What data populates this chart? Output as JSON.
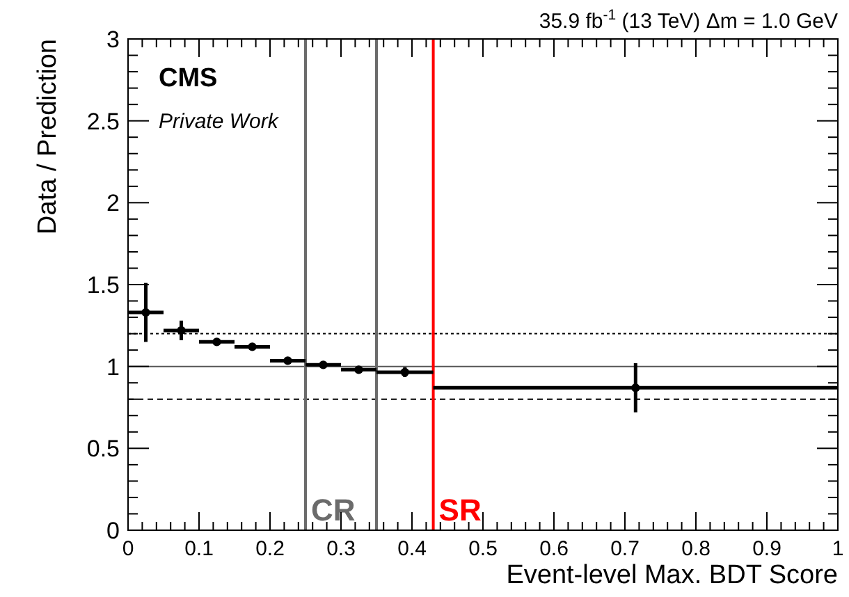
{
  "chart_data": {
    "type": "scatter",
    "title": "35.9 fb$^{-1}$ (13 TeV) Δm = 1.0 GeV",
    "xlabel": "Event-level Max. BDT Score",
    "ylabel": "Data / Prediction",
    "annotations": [
      "CMS",
      "Private Work"
    ],
    "x": [
      0.025,
      0.075,
      0.125,
      0.175,
      0.225,
      0.275,
      0.325,
      0.39,
      0.715
    ],
    "xerrors": [
      0.025,
      0.025,
      0.025,
      0.025,
      0.025,
      0.025,
      0.025,
      0.04,
      0.285
    ],
    "values": [
      1.33,
      1.22,
      1.15,
      1.12,
      1.035,
      1.01,
      0.98,
      0.965,
      0.87
    ],
    "errors": [
      0.18,
      0.06,
      0.02,
      0.015,
      0.01,
      0.01,
      0.015,
      0.03,
      0.15
    ],
    "color": "#000000",
    "marker": "circle",
    "grid": false,
    "xlim": [
      0,
      1
    ],
    "xticks": [
      0,
      0.1,
      0.2,
      0.3,
      0.4,
      0.5,
      0.6,
      0.7,
      0.8,
      0.9,
      1
    ],
    "ylim": [
      0,
      3
    ],
    "yticks": [
      0,
      0.5,
      1,
      1.5,
      2,
      2.5,
      3
    ],
    "ref_lines": [
      {
        "axis": "y",
        "value": 1,
        "color": "#555555",
        "line_style": "solid"
      },
      {
        "axis": "y",
        "value": 1.2,
        "color": "#000000",
        "line_style": "dotted"
      },
      {
        "axis": "y",
        "value": 0.8,
        "color": "#000000",
        "line_style": "dashed"
      },
      {
        "axis": "x",
        "value": 0.25,
        "color": "#6b6b6b",
        "line_style": "solid",
        "label": "CR"
      },
      {
        "axis": "x",
        "value": 0.35,
        "color": "#6b6b6b",
        "line_style": "solid"
      },
      {
        "axis": "x",
        "value": 0.43,
        "color": "#ff0000",
        "line_style": "solid",
        "label": "SR"
      }
    ]
  }
}
